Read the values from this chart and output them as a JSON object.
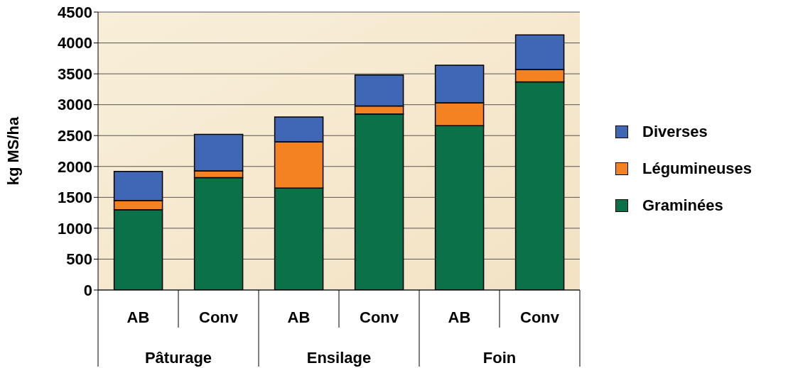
{
  "chart_data": {
    "type": "bar",
    "stacked": true,
    "ylabel": "kg MS/ha",
    "categories": [
      "AB",
      "Conv",
      "AB",
      "Conv",
      "AB",
      "Conv"
    ],
    "annotations": [
      "Pâturage",
      "Ensilage",
      "Foin"
    ],
    "series": [
      {
        "name": "Graminées",
        "color": "#0a7148",
        "values": [
          1300,
          1820,
          1650,
          2850,
          2660,
          3370
        ]
      },
      {
        "name": "Légumineuses",
        "color": "#f58220",
        "values": [
          150,
          110,
          750,
          130,
          370,
          200
        ]
      },
      {
        "name": "Diverses",
        "color": "#3f67b5",
        "values": [
          470,
          590,
          400,
          500,
          610,
          560
        ]
      }
    ],
    "ylim": [
      0,
      4500
    ],
    "yticks": [
      0,
      500,
      1000,
      1500,
      2000,
      2500,
      3000,
      3500,
      4000,
      4500
    ],
    "grid": "y",
    "legend": "right"
  }
}
